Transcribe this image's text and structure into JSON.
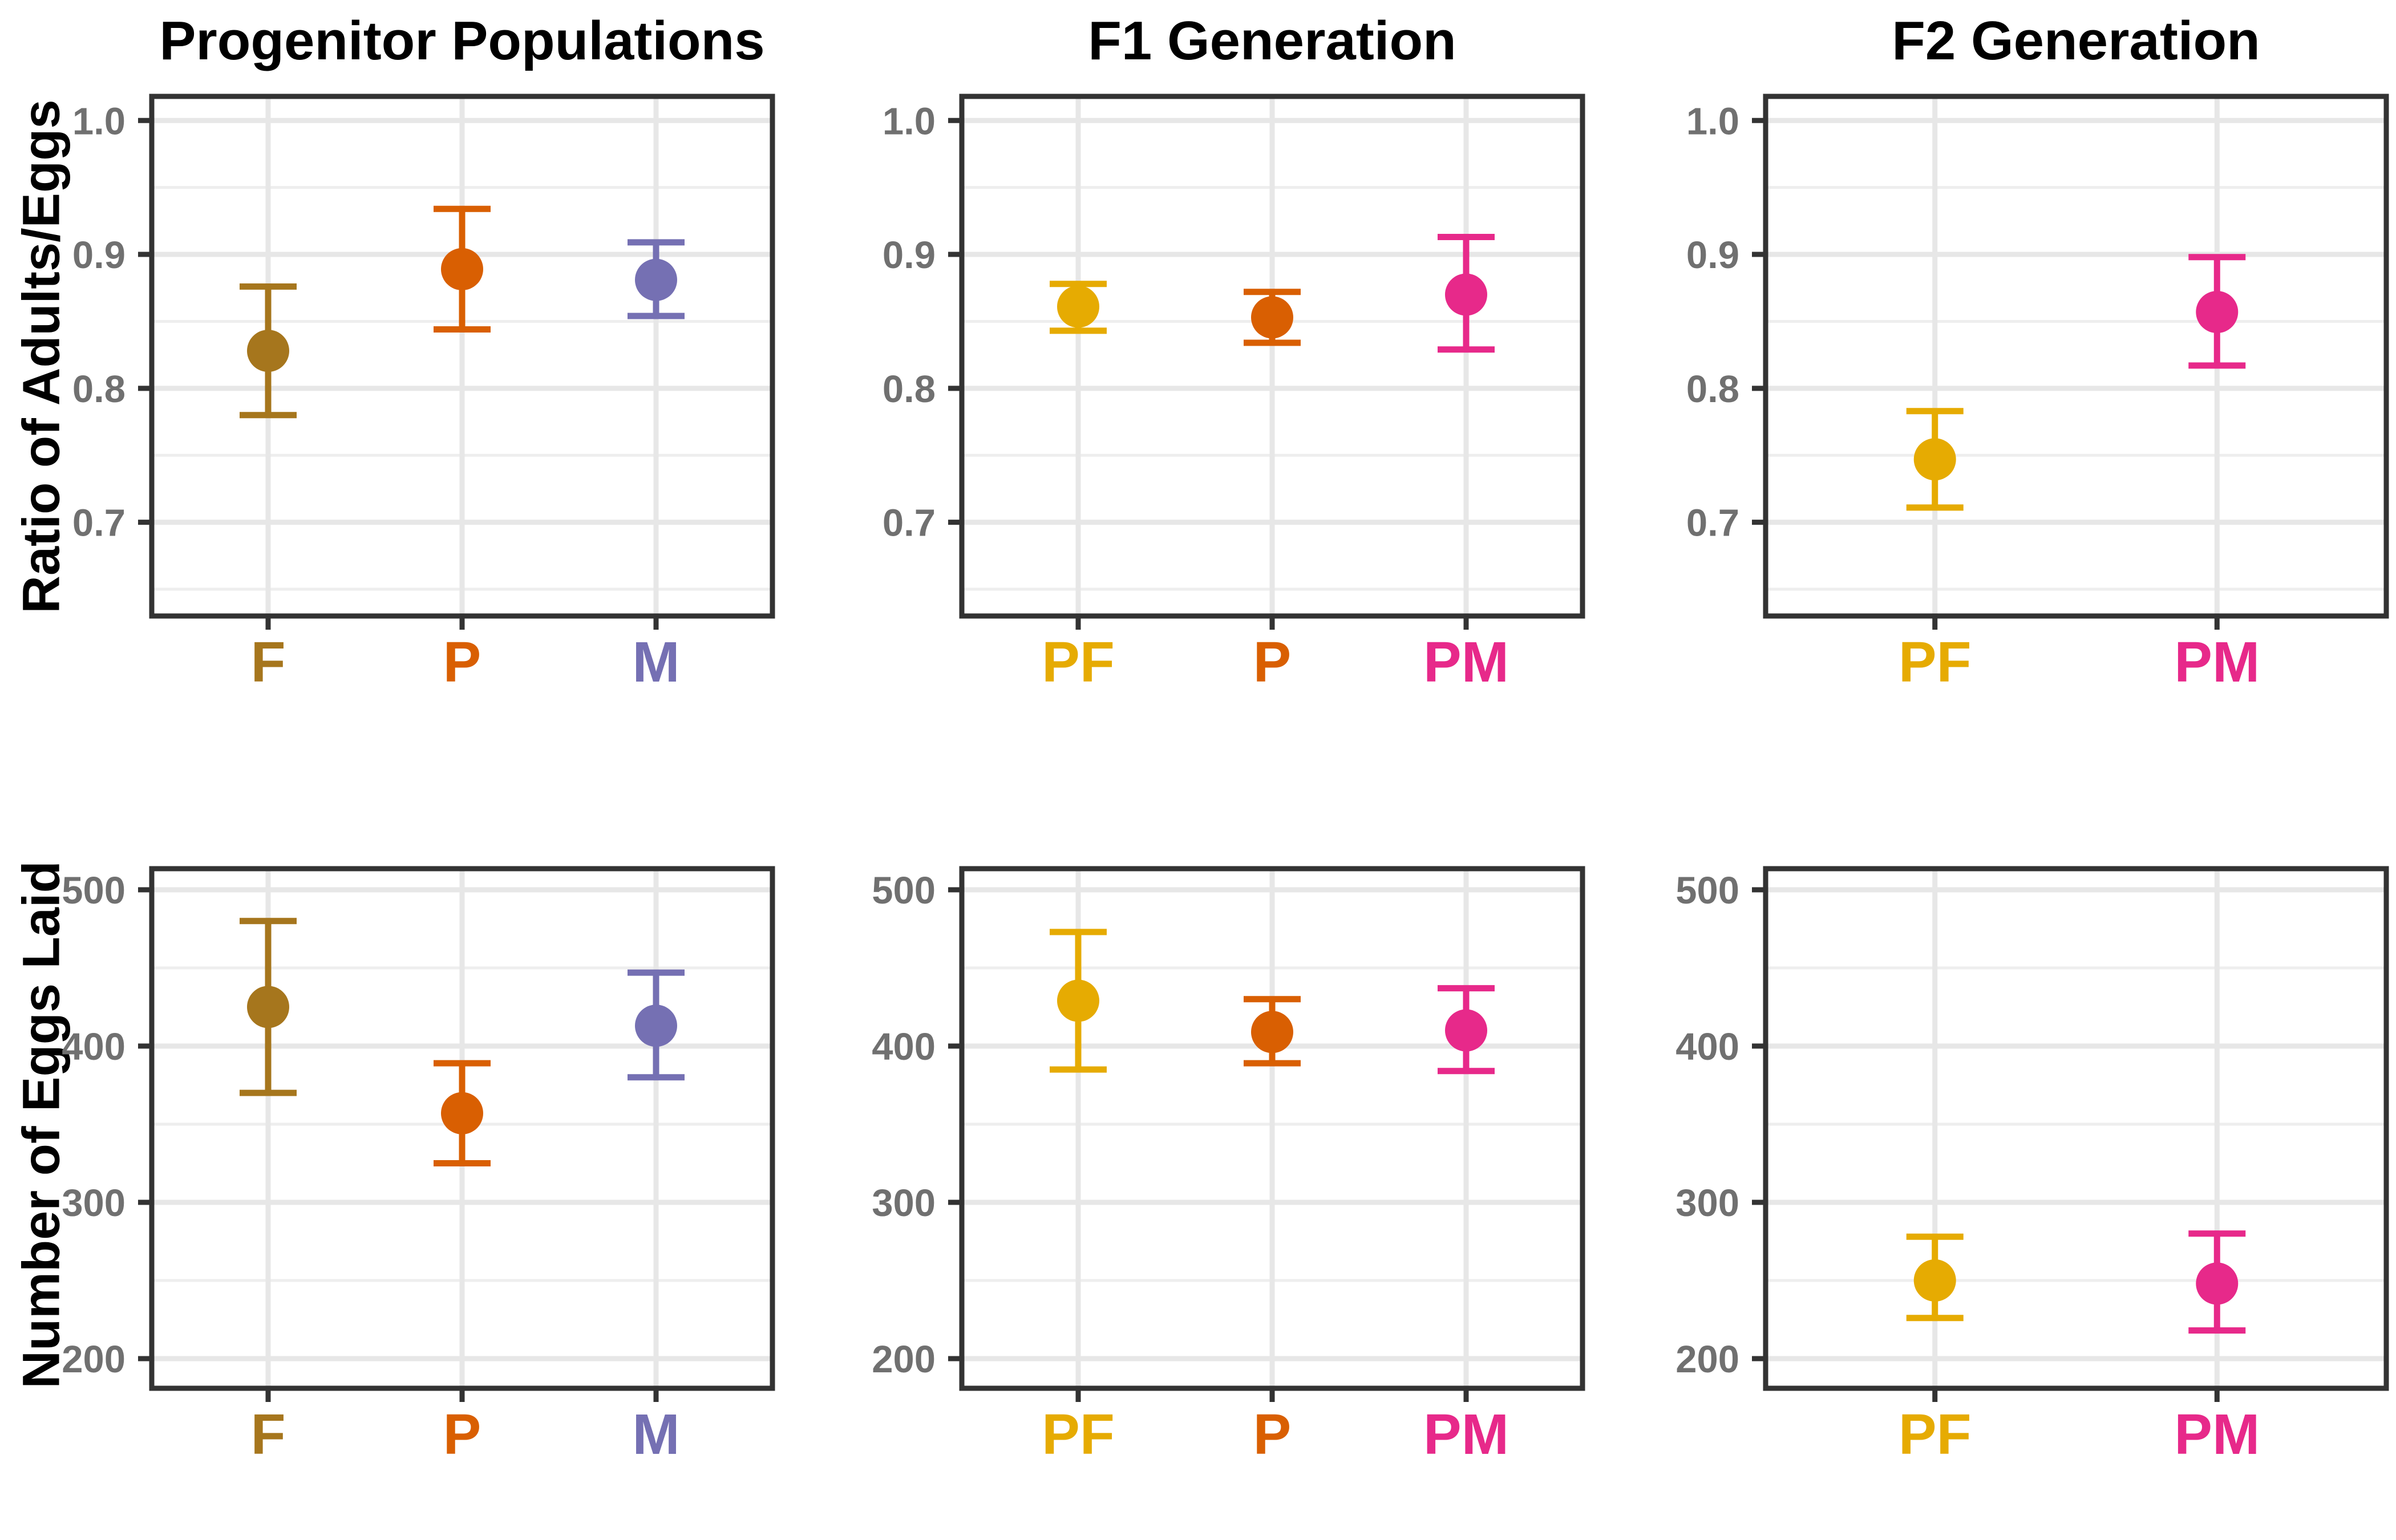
{
  "colors": {
    "background": "#ffffff",
    "title_text": "#000000",
    "axis_label_text": "#000000",
    "tick_label_text": "#707070",
    "axis_line": "#333333",
    "grid_major": "#e7e7e7",
    "grid_minor": "#eeeeee"
  },
  "palette": {
    "F": "#A6761D",
    "P": "#D95F02",
    "M": "#7570B3",
    "PF": "#E6AB02",
    "PM": "#E7298A"
  },
  "chart_data": [
    {
      "type": "pointrange",
      "title": "Progenitor Populations",
      "ylabel": "Ratio of Adults/Eggs",
      "row": 0,
      "col": 0,
      "categories": [
        "F",
        "P",
        "M"
      ],
      "series": [
        {
          "name": "F",
          "mean": 0.828,
          "ci_low": 0.78,
          "ci_high": 0.876
        },
        {
          "name": "P",
          "mean": 0.889,
          "ci_low": 0.844,
          "ci_high": 0.934
        },
        {
          "name": "M",
          "mean": 0.881,
          "ci_low": 0.854,
          "ci_high": 0.909
        }
      ],
      "ylim": [
        0.63,
        1.018
      ],
      "yticks": [
        "0.7",
        "0.8",
        "0.9",
        "1.0"
      ],
      "yminor": [
        0.65,
        0.75,
        0.85,
        0.95
      ],
      "grid": true,
      "legend": "none"
    },
    {
      "type": "pointrange",
      "title": "F1 Generation",
      "row": 0,
      "col": 1,
      "categories": [
        "PF",
        "P",
        "PM"
      ],
      "series": [
        {
          "name": "PF",
          "mean": 0.861,
          "ci_low": 0.843,
          "ci_high": 0.878
        },
        {
          "name": "P",
          "mean": 0.853,
          "ci_low": 0.834,
          "ci_high": 0.872
        },
        {
          "name": "PM",
          "mean": 0.87,
          "ci_low": 0.829,
          "ci_high": 0.913
        }
      ],
      "ylim": [
        0.63,
        1.018
      ],
      "yticks": [
        "0.7",
        "0.8",
        "0.9",
        "1.0"
      ],
      "yminor": [
        0.65,
        0.75,
        0.85,
        0.95
      ],
      "grid": true,
      "legend": "none"
    },
    {
      "type": "pointrange",
      "title": "F2 Generation",
      "row": 0,
      "col": 2,
      "categories": [
        "PF",
        "PM"
      ],
      "series": [
        {
          "name": "PF",
          "mean": 0.747,
          "ci_low": 0.711,
          "ci_high": 0.783
        },
        {
          "name": "PM",
          "mean": 0.857,
          "ci_low": 0.817,
          "ci_high": 0.898
        }
      ],
      "ylim": [
        0.63,
        1.018
      ],
      "yticks": [
        "0.7",
        "0.8",
        "0.9",
        "1.0"
      ],
      "yminor": [
        0.65,
        0.75,
        0.85,
        0.95
      ],
      "grid": true,
      "legend": "none"
    },
    {
      "type": "pointrange",
      "ylabel": "Number of Eggs Laid",
      "row": 1,
      "col": 0,
      "categories": [
        "F",
        "P",
        "M"
      ],
      "series": [
        {
          "name": "F",
          "mean": 425,
          "ci_low": 370,
          "ci_high": 480
        },
        {
          "name": "P",
          "mean": 357,
          "ci_low": 325,
          "ci_high": 389
        },
        {
          "name": "M",
          "mean": 413,
          "ci_low": 380,
          "ci_high": 447
        }
      ],
      "ylim": [
        181,
        513.5
      ],
      "yticks": [
        "200",
        "300",
        "400",
        "500"
      ],
      "yminor": [
        250,
        350,
        450
      ],
      "grid": true,
      "legend": "none"
    },
    {
      "type": "pointrange",
      "row": 1,
      "col": 1,
      "categories": [
        "PF",
        "P",
        "PM"
      ],
      "series": [
        {
          "name": "PF",
          "mean": 429,
          "ci_low": 385,
          "ci_high": 473
        },
        {
          "name": "P",
          "mean": 409,
          "ci_low": 389,
          "ci_high": 430
        },
        {
          "name": "PM",
          "mean": 410,
          "ci_low": 384,
          "ci_high": 437
        }
      ],
      "ylim": [
        181,
        513.5
      ],
      "yticks": [
        "200",
        "300",
        "400",
        "500"
      ],
      "yminor": [
        250,
        350,
        450
      ],
      "grid": true,
      "legend": "none"
    },
    {
      "type": "pointrange",
      "row": 1,
      "col": 2,
      "categories": [
        "PF",
        "PM"
      ],
      "series": [
        {
          "name": "PF",
          "mean": 250,
          "ci_low": 226,
          "ci_high": 278
        },
        {
          "name": "PM",
          "mean": 248,
          "ci_low": 218,
          "ci_high": 280
        }
      ],
      "ylim": [
        181,
        513.5
      ],
      "yticks": [
        "200",
        "300",
        "400",
        "500"
      ],
      "yminor": [
        250,
        350,
        450
      ],
      "grid": true,
      "legend": "none"
    }
  ]
}
